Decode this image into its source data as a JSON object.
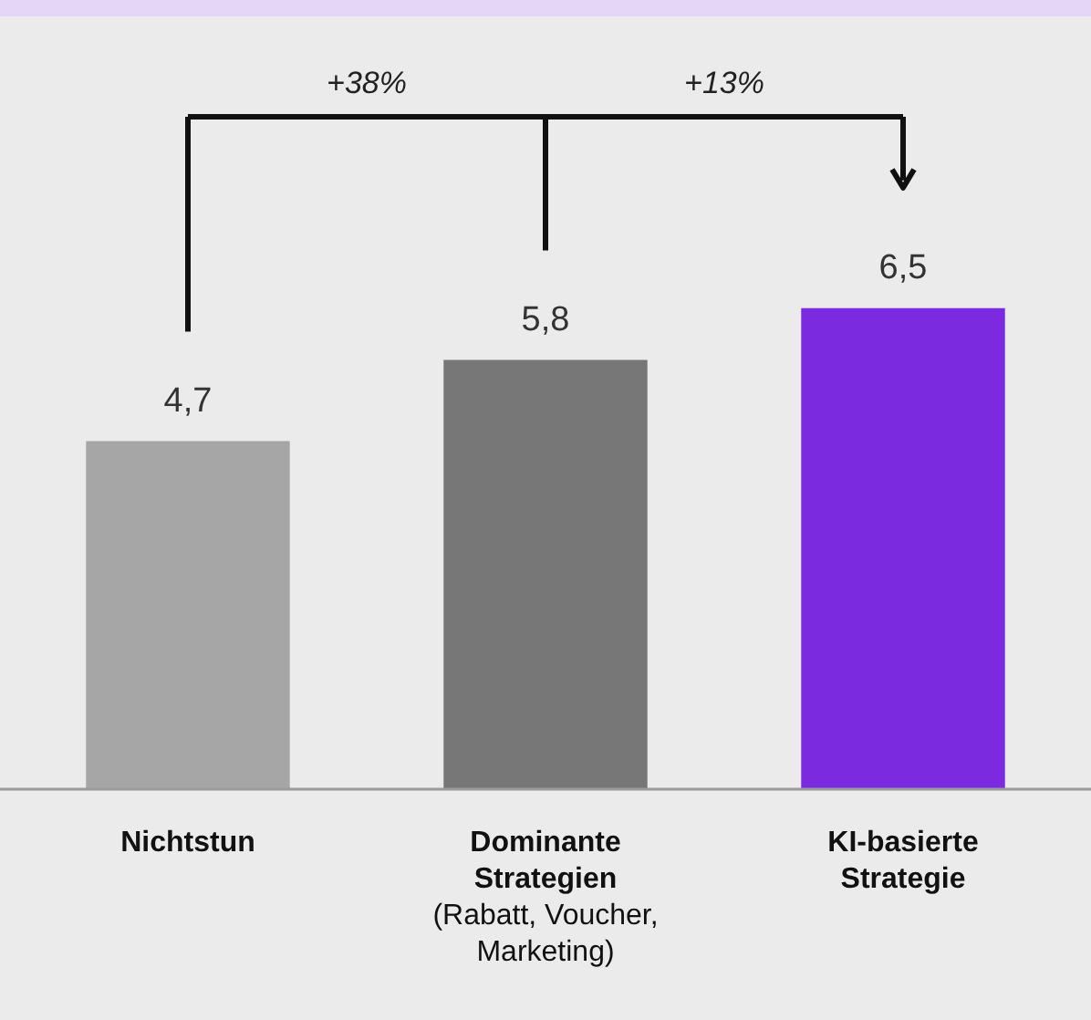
{
  "chart_data": {
    "type": "bar",
    "categories": [
      "Nichtstun",
      "Dominante Strategien (Rabatt, Voucher, Marketing)",
      "KI-basierte Strategie"
    ],
    "values": [
      4.7,
      5.8,
      6.5
    ],
    "colors": [
      "#a6a6a6",
      "#777777",
      "#7b2ae0"
    ],
    "value_labels": [
      "4,7",
      "5,8",
      "6,5"
    ],
    "annotations": [
      "+38%",
      "+13%"
    ],
    "grid": false,
    "legend": false
  }
}
